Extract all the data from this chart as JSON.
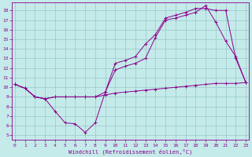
{
  "xlabel": "Windchill (Refroidissement éolien,°C)",
  "x_ticks": [
    0,
    1,
    2,
    3,
    4,
    5,
    6,
    7,
    8,
    9,
    10,
    11,
    12,
    13,
    14,
    15,
    16,
    17,
    18,
    19,
    20,
    21,
    22,
    23
  ],
  "y_ticks": [
    5,
    6,
    7,
    8,
    9,
    10,
    11,
    12,
    13,
    14,
    15,
    16,
    17,
    18
  ],
  "ylim": [
    4.5,
    18.8
  ],
  "xlim": [
    -0.3,
    23.3
  ],
  "bg_color": "#c5eaea",
  "line_color": "#8b008b",
  "grid_color": "#9ecece",
  "line1_x": [
    0,
    1,
    2,
    3,
    4,
    5,
    6,
    7,
    8,
    9,
    10,
    11,
    12,
    13,
    14,
    15,
    16,
    17,
    18,
    19,
    20,
    21,
    22,
    23
  ],
  "line1_y": [
    10.3,
    9.9,
    9.0,
    8.8,
    9.0,
    9.0,
    9.0,
    9.0,
    9.0,
    9.2,
    9.4,
    9.5,
    9.6,
    9.7,
    9.8,
    9.9,
    10.0,
    10.1,
    10.2,
    10.3,
    10.4,
    10.4,
    10.4,
    10.5
  ],
  "line2_x": [
    0,
    1,
    2,
    3,
    4,
    5,
    6,
    7,
    8,
    9,
    10,
    11,
    12,
    13,
    14,
    15,
    16,
    17,
    18,
    19,
    20,
    21,
    22,
    23
  ],
  "line2_y": [
    10.3,
    9.9,
    9.0,
    8.8,
    9.0,
    9.0,
    9.0,
    9.0,
    9.0,
    9.5,
    12.5,
    12.8,
    13.2,
    14.5,
    15.5,
    17.2,
    17.5,
    17.8,
    18.2,
    18.2,
    18.0,
    18.0,
    13.0,
    10.5
  ],
  "line3_x": [
    0,
    1,
    2,
    3,
    4,
    5,
    6,
    7,
    8,
    9,
    10,
    11,
    12,
    13,
    14,
    15,
    16,
    17,
    18,
    19,
    20,
    21,
    22,
    23
  ],
  "line3_y": [
    10.3,
    9.9,
    9.0,
    8.8,
    7.5,
    6.3,
    6.2,
    5.3,
    6.3,
    9.5,
    11.8,
    12.2,
    12.5,
    13.0,
    15.2,
    17.0,
    17.2,
    17.5,
    17.8,
    18.5,
    16.8,
    14.8,
    13.2,
    10.5
  ]
}
